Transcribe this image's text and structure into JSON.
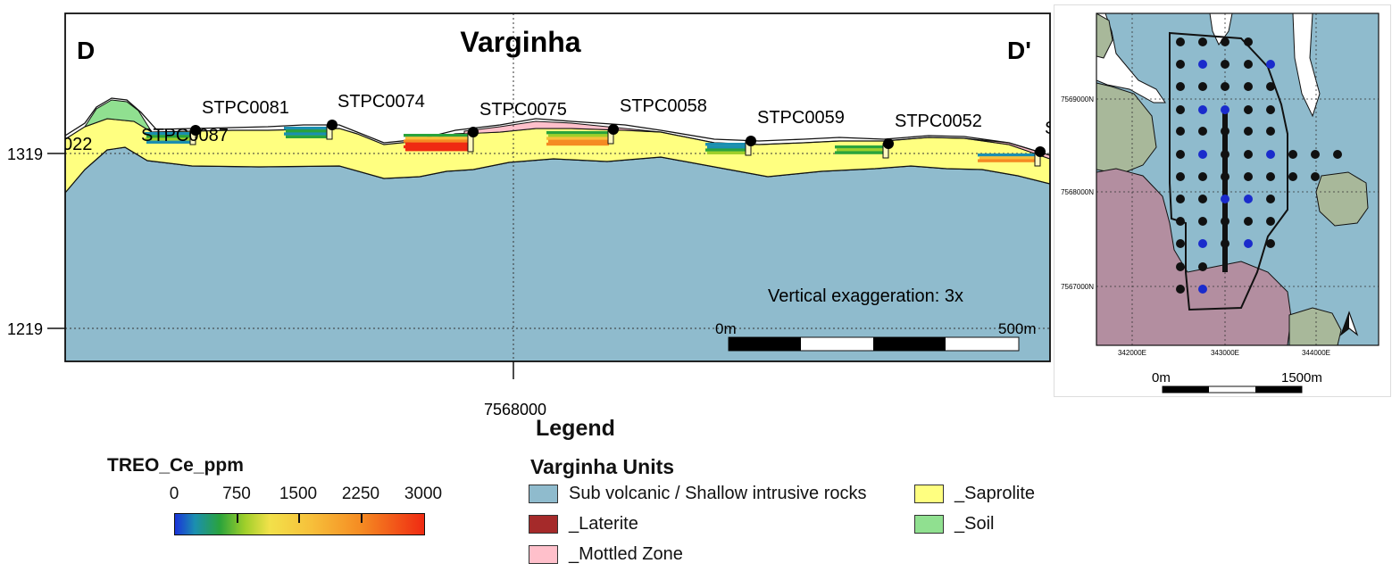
{
  "section": {
    "title": "Varginha",
    "left_end_label": "D",
    "right_end_label": "D'",
    "elevation_labels": [
      "1319",
      "1219"
    ],
    "easting_label": "7568000",
    "vertical_exaggeration": "Vertical exaggeration: 3x",
    "scale_start": "0m",
    "scale_end": "500m",
    "drillholes": [
      {
        "id": "STPC0087"
      },
      {
        "id": "STPC0081"
      },
      {
        "id": "STPC0074"
      },
      {
        "id": "STPC0075"
      },
      {
        "id": "STPC0058"
      },
      {
        "id": "STPC0059"
      },
      {
        "id": "STPC0052"
      }
    ],
    "partial_labels": [
      "022",
      "S"
    ]
  },
  "inset_map": {
    "northing_labels": [
      "7569000N",
      "7568000N",
      "7567000N"
    ],
    "easting_labels": [
      "342000E",
      "343000E",
      "344000E"
    ],
    "scale_start": "0m",
    "scale_end": "1500m"
  },
  "legend": {
    "title": "Legend",
    "colorbar": {
      "title": "TREO_Ce_ppm",
      "ticks": [
        "0",
        "750",
        "1500",
        "2250",
        "3000"
      ],
      "range": [
        0,
        3000
      ]
    },
    "units_title": "Varginha Units",
    "units": [
      {
        "label": "Sub volcanic / Shallow intrusive rocks",
        "color": "#8fbbcd"
      },
      {
        "label": "_Laterite",
        "color": "#a52a2a"
      },
      {
        "label": "_Mottled Zone",
        "color": "#ffc0cb"
      },
      {
        "label": "_Saprolite",
        "color": "#ffff80"
      },
      {
        "label": "_Soil",
        "color": "#90e090"
      }
    ]
  }
}
